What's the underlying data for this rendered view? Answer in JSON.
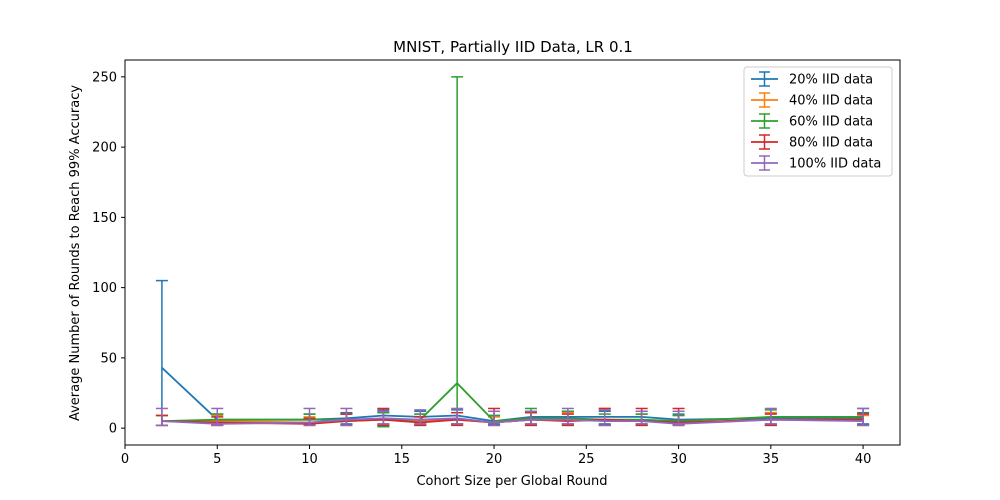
{
  "chart_data": {
    "type": "line",
    "title": "MNIST, Partially IID Data, LR 0.1",
    "xlabel": "Cohort Size per Global Round",
    "ylabel": "Average Number of Rounds to Reach 99% Accuracy",
    "xlim": [
      0,
      42
    ],
    "ylim": [
      -12,
      262
    ],
    "xticks": [
      0,
      5,
      10,
      15,
      20,
      25,
      30,
      35,
      40
    ],
    "yticks": [
      0,
      50,
      100,
      150,
      200,
      250
    ],
    "grid": false,
    "legend_position": "top-right",
    "x": [
      2,
      5,
      10,
      12,
      14,
      16,
      18,
      20,
      22,
      24,
      26,
      28,
      30,
      35,
      40
    ],
    "series": [
      {
        "name": "20% IID data",
        "color": "#1f77b4",
        "values": [
          43,
          6,
          6,
          7,
          9,
          8,
          9,
          5,
          8,
          8,
          8,
          8,
          6,
          7,
          7
        ],
        "err_low": [
          2,
          3,
          3,
          3,
          3,
          3,
          3,
          3,
          3,
          3,
          3,
          3,
          3,
          3,
          3
        ],
        "err_high": [
          105,
          10,
          10,
          11,
          13,
          12,
          13,
          9,
          12,
          12,
          12,
          12,
          10,
          11,
          11
        ]
      },
      {
        "name": "40% IID data",
        "color": "#ff7f0e",
        "values": [
          5,
          5,
          4,
          5,
          6,
          5,
          6,
          4,
          6,
          6,
          6,
          5,
          4,
          6,
          6
        ],
        "err_low": [
          2,
          2,
          2,
          2,
          2,
          2,
          2,
          2,
          2,
          2,
          2,
          2,
          2,
          2,
          2
        ],
        "err_high": [
          9,
          9,
          8,
          10,
          11,
          10,
          11,
          8,
          11,
          11,
          14,
          10,
          9,
          11,
          9
        ]
      },
      {
        "name": "60% IID data",
        "color": "#2ca02c",
        "values": [
          5,
          6,
          6,
          6,
          6,
          6,
          32,
          5,
          7,
          7,
          6,
          6,
          5,
          8,
          8
        ],
        "err_low": [
          2,
          2,
          2,
          2,
          1,
          2,
          3,
          2,
          2,
          2,
          2,
          2,
          2,
          2,
          2
        ],
        "err_high": [
          9,
          10,
          10,
          10,
          11,
          10,
          250,
          9,
          14,
          12,
          10,
          10,
          9,
          13,
          14
        ]
      },
      {
        "name": "80% IID data",
        "color": "#d62728",
        "values": [
          5,
          4,
          3,
          5,
          6,
          4,
          6,
          4,
          6,
          5,
          6,
          5,
          4,
          6,
          6
        ],
        "err_low": [
          2,
          2,
          2,
          2,
          2,
          2,
          2,
          2,
          2,
          2,
          2,
          2,
          2,
          2,
          2
        ],
        "err_high": [
          9,
          8,
          7,
          10,
          14,
          8,
          11,
          14,
          11,
          10,
          14,
          14,
          14,
          10,
          10
        ]
      },
      {
        "name": "100% IID data",
        "color": "#9467bd",
        "values": [
          5,
          3,
          4,
          6,
          7,
          6,
          7,
          4,
          6,
          6,
          5,
          5,
          3,
          6,
          5
        ],
        "err_low": [
          2,
          2,
          2,
          2,
          3,
          3,
          3,
          2,
          3,
          3,
          2,
          3,
          2,
          3,
          2
        ],
        "err_high": [
          14,
          14,
          14,
          14,
          12,
          13,
          14,
          12,
          12,
          14,
          13,
          12,
          12,
          14,
          14
        ]
      }
    ]
  }
}
